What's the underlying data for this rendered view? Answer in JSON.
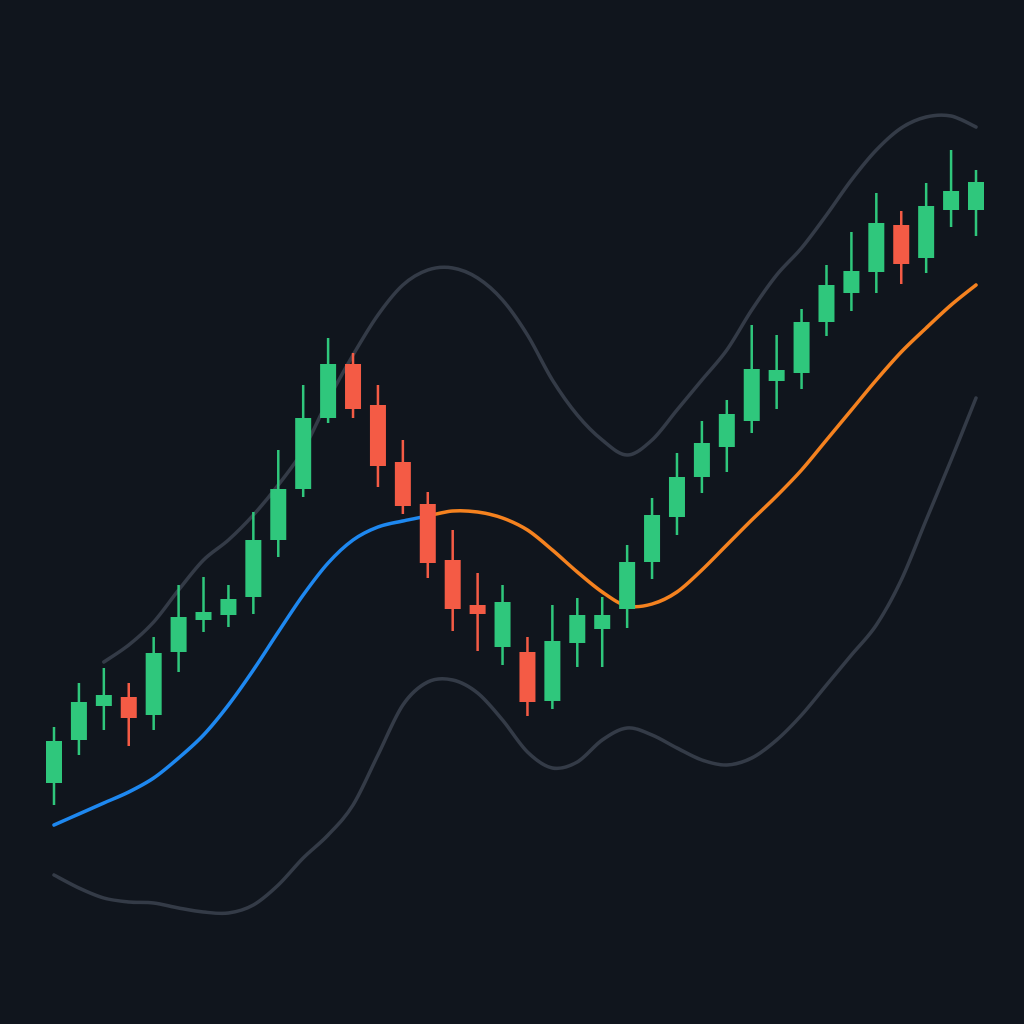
{
  "chart_data": {
    "type": "candlestick",
    "open": [
      21.7,
      26,
      29.4,
      30.3,
      28.5,
      34.8,
      38,
      38.5,
      40.3,
      46,
      51.1,
      58.2,
      63.6,
      59.5,
      53.8,
      49.6,
      44,
      39.5,
      35.3,
      34.8,
      29.9,
      35.7,
      37.1,
      39.1,
      43.8,
      48.3,
      52.3,
      55.3,
      57.9,
      61.9,
      62.7,
      67.8,
      70.7,
      72.8,
      77.5,
      74.2,
      79,
      79
    ],
    "high": [
      27.3,
      31.7,
      33.2,
      31.7,
      36.3,
      41.5,
      42.3,
      41.5,
      48.8,
      55,
      61.5,
      66.2,
      64.7,
      61.5,
      56,
      50.8,
      47,
      42.7,
      41.5,
      36.3,
      39.5,
      40.2,
      40.3,
      45.5,
      50.2,
      54.7,
      57.9,
      60,
      67.5,
      66.5,
      69.1,
      73.5,
      76.8,
      80.7,
      78.9,
      81.7,
      85,
      83
    ],
    "low": [
      19.5,
      24.5,
      27,
      25.4,
      27,
      32.8,
      36.8,
      37.3,
      38.6,
      44.3,
      50.3,
      57.7,
      58.2,
      51.3,
      48.6,
      42.2,
      36.9,
      34.9,
      33.5,
      28.4,
      29.1,
      33.3,
      33.3,
      37.2,
      42.1,
      46.5,
      50.7,
      52.8,
      56.7,
      59.1,
      61.1,
      66.4,
      68.9,
      70.7,
      71.6,
      72.7,
      77.3,
      76.4
    ],
    "close": [
      25.9,
      29.8,
      30.5,
      28.2,
      34.7,
      38.3,
      38.8,
      40.1,
      46,
      51.1,
      58.2,
      63.6,
      59.1,
      53.4,
      49.4,
      43.7,
      39.1,
      38.6,
      39.8,
      29.8,
      35.9,
      38.5,
      38.5,
      43.8,
      48.5,
      52.3,
      55.7,
      58.6,
      63.1,
      63,
      67.8,
      71.5,
      72.9,
      77.7,
      73.6,
      79.4,
      80.9,
      81.8
    ],
    "up_color": "#2fc77c",
    "down_color": "#f45b45",
    "lines": [
      {
        "color": "#343b47",
        "values": [
          null,
          null,
          33.8,
          35.5,
          37.8,
          41,
          44,
          46,
          48.5,
          51.5,
          55,
          60,
          64.5,
          68.5,
          71.5,
          73,
          73.2,
          72.2,
          70,
          66.5,
          62,
          58.5,
          56,
          54.5,
          56,
          59,
          62,
          65,
          69,
          72.5,
          75.2,
          78.5,
          82,
          85,
          87.2,
          88.3,
          88.4,
          87.3
        ]
      },
      {
        "color": "#343b47",
        "values": [
          12.5,
          11.2,
          10.2,
          9.8,
          9.7,
          9.2,
          8.8,
          8.7,
          9.5,
          11.5,
          14.2,
          16.5,
          19.5,
          24.5,
          29.5,
          31.8,
          32,
          30.7,
          28,
          24.8,
          23.2,
          23.8,
          26,
          27.2,
          26.5,
          25.2,
          24,
          23.5,
          24.2,
          26,
          28.5,
          31.5,
          34.5,
          37.5,
          42,
          48,
          54,
          60.2
        ]
      },
      {
        "color": "#1e88f0",
        "values": [
          17.5,
          18.6,
          19.7,
          20.8,
          22.2,
          24.2,
          26.5,
          29.5,
          33,
          36.8,
          40.5,
          43.7,
          46,
          47.3,
          47.9,
          48.4,
          null,
          null,
          null,
          null,
          null,
          null,
          null,
          null,
          null,
          null,
          null,
          null,
          null,
          null,
          null,
          null,
          null,
          null,
          null,
          null,
          null,
          null
        ]
      },
      {
        "color": "#f5821f",
        "values": [
          null,
          null,
          null,
          null,
          null,
          null,
          null,
          null,
          null,
          null,
          null,
          null,
          null,
          null,
          null,
          48.4,
          48.9,
          48.8,
          48.2,
          47,
          45,
          42.8,
          40.8,
          39.4,
          39.6,
          40.8,
          43,
          45.5,
          48,
          50.4,
          53,
          56,
          59,
          62,
          64.8,
          67.2,
          69.5,
          71.5
        ]
      }
    ],
    "ylim": [
      0,
      100
    ]
  }
}
